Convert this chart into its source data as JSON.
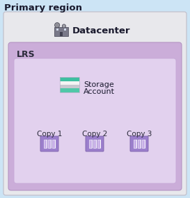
{
  "title": "Primary region",
  "title_fontsize": 9.5,
  "bg_color": "#cce4f5",
  "datacenter_box_facecolor": "#e8e8ec",
  "datacenter_box_edgecolor": "#c0bcc8",
  "lrs_box_facecolor": "#c9a8d8",
  "lrs_box_edgecolor": "#b090c0",
  "inner_box_facecolor": "#e4d4f0",
  "inner_box_edgecolor": "#c8aad8",
  "datacenter_label": "Datacenter",
  "lrs_label": "LRS",
  "storage_label_line1": "Storage",
  "storage_label_line2": "Account",
  "copies": [
    "Copy 1",
    "Copy 2",
    "Copy 3"
  ],
  "copy_box_facecolor": "#9b7fcc",
  "copy_box_edgecolor": "#7b5faa",
  "copy_bar_light": "#c8b0e8",
  "copy_bar_white": "#f0ecf8",
  "storage_teal1": "#3dbfa0",
  "storage_teal2": "#50c8a8",
  "storage_gray1": "#c8c8d0",
  "storage_white": "#f4f4f4",
  "icon_dark": "#404050",
  "text_dark": "#1a1a2e"
}
